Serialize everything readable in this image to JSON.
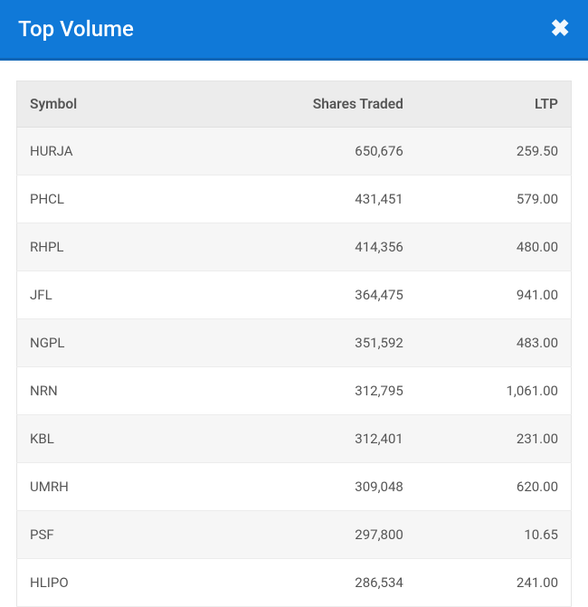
{
  "header": {
    "title": "Top Volume"
  },
  "table": {
    "columns": [
      {
        "key": "symbol",
        "label": "Symbol",
        "align": "left"
      },
      {
        "key": "shares",
        "label": "Shares Traded",
        "align": "right"
      },
      {
        "key": "ltp",
        "label": "LTP",
        "align": "right"
      }
    ],
    "rows": [
      {
        "symbol": "HURJA",
        "shares": "650,676",
        "ltp": "259.50"
      },
      {
        "symbol": "PHCL",
        "shares": "431,451",
        "ltp": "579.00"
      },
      {
        "symbol": "RHPL",
        "shares": "414,356",
        "ltp": "480.00"
      },
      {
        "symbol": "JFL",
        "shares": "364,475",
        "ltp": "941.00"
      },
      {
        "symbol": "NGPL",
        "shares": "351,592",
        "ltp": "483.00"
      },
      {
        "symbol": "NRN",
        "shares": "312,795",
        "ltp": "1,061.00"
      },
      {
        "symbol": "KBL",
        "shares": "312,401",
        "ltp": "231.00"
      },
      {
        "symbol": "UMRH",
        "shares": "309,048",
        "ltp": "620.00"
      },
      {
        "symbol": "PSF",
        "shares": "297,800",
        "ltp": "10.65"
      },
      {
        "symbol": "HLIPO",
        "shares": "286,534",
        "ltp": "241.00"
      }
    ]
  },
  "colors": {
    "header_bg": "#1079d8",
    "header_border": "#0d65b6",
    "header_text": "#ffffff",
    "thead_bg": "#ececec",
    "row_odd_bg": "#f6f6f6",
    "row_even_bg": "#ffffff",
    "text_color": "#555555",
    "border_color": "#e4e4e4"
  }
}
